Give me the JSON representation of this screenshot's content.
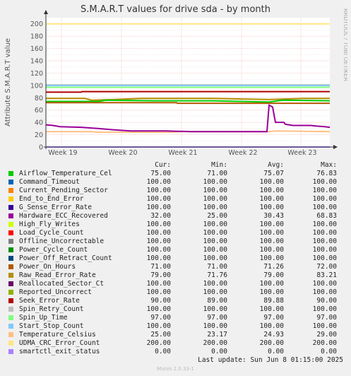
{
  "chart_data": {
    "type": "line",
    "title": "S.M.A.R.T values for drive sda - by month",
    "ylabel": "Attribute S.M.A.R.T value",
    "side_label": "RRDTOOL / TOBI OETIKER",
    "ylim": [
      0,
      210
    ],
    "yticks": [
      0,
      20,
      40,
      60,
      80,
      100,
      120,
      140,
      160,
      180,
      200
    ],
    "xticks": [
      "Week 19",
      "Week 20",
      "Week 21",
      "Week 22",
      "Week 23"
    ],
    "grid": true,
    "legend_headers": {
      "cur": "Cur:",
      "min": "Min:",
      "avg": "Avg:",
      "max": "Max:"
    },
    "series": [
      {
        "name": "Airflow_Temperature_Cel",
        "color": "#00cc00",
        "cur": "75.00",
        "min": "71.00",
        "avg": "75.07",
        "max": "76.83"
      },
      {
        "name": "Command_Timeout",
        "color": "#0066b3",
        "cur": "100.00",
        "min": "100.00",
        "avg": "100.00",
        "max": "100.00"
      },
      {
        "name": "Current_Pending_Sector",
        "color": "#ff8000",
        "cur": "100.00",
        "min": "100.00",
        "avg": "100.00",
        "max": "100.00"
      },
      {
        "name": "End_to_End_Error",
        "color": "#ffcc00",
        "cur": "100.00",
        "min": "100.00",
        "avg": "100.00",
        "max": "100.00"
      },
      {
        "name": "G_Sense_Error_Rate",
        "color": "#330099",
        "cur": "100.00",
        "min": "100.00",
        "avg": "100.00",
        "max": "100.00"
      },
      {
        "name": "Hardware_ECC_Recovered",
        "color": "#990099",
        "cur": "32.00",
        "min": "25.00",
        "avg": "30.43",
        "max": "68.83"
      },
      {
        "name": "High_Fly_Writes",
        "color": "#ccff00",
        "cur": "100.00",
        "min": "100.00",
        "avg": "100.00",
        "max": "100.00"
      },
      {
        "name": "Load_Cycle_Count",
        "color": "#ff0000",
        "cur": "100.00",
        "min": "100.00",
        "avg": "100.00",
        "max": "100.00"
      },
      {
        "name": "Offline_Uncorrectable",
        "color": "#808080",
        "cur": "100.00",
        "min": "100.00",
        "avg": "100.00",
        "max": "100.00"
      },
      {
        "name": "Power_Cycle_Count",
        "color": "#008f00",
        "cur": "100.00",
        "min": "100.00",
        "avg": "100.00",
        "max": "100.00"
      },
      {
        "name": "Power_Off_Retract_Count",
        "color": "#00487d",
        "cur": "100.00",
        "min": "100.00",
        "avg": "100.00",
        "max": "100.00"
      },
      {
        "name": "Power_On_Hours",
        "color": "#b35a00",
        "cur": "71.00",
        "min": "71.00",
        "avg": "71.26",
        "max": "72.00"
      },
      {
        "name": "Raw_Read_Error_Rate",
        "color": "#b38f00",
        "cur": "79.00",
        "min": "71.76",
        "avg": "79.00",
        "max": "83.21"
      },
      {
        "name": "Reallocated_Sector_Ct",
        "color": "#6b006b",
        "cur": "100.00",
        "min": "100.00",
        "avg": "100.00",
        "max": "100.00"
      },
      {
        "name": "Reported_Uncorrect",
        "color": "#8fb300",
        "cur": "100.00",
        "min": "100.00",
        "avg": "100.00",
        "max": "100.00"
      },
      {
        "name": "Seek_Error_Rate",
        "color": "#b30000",
        "cur": "90.00",
        "min": "89.00",
        "avg": "89.88",
        "max": "90.00"
      },
      {
        "name": "Spin_Retry_Count",
        "color": "#bebebe",
        "cur": "100.00",
        "min": "100.00",
        "avg": "100.00",
        "max": "100.00"
      },
      {
        "name": "Spin_Up_Time",
        "color": "#80ff80",
        "cur": "97.00",
        "min": "97.00",
        "avg": "97.00",
        "max": "97.00"
      },
      {
        "name": "Start_Stop_Count",
        "color": "#80c9ff",
        "cur": "100.00",
        "min": "100.00",
        "avg": "100.00",
        "max": "100.00"
      },
      {
        "name": "Temperature_Celsius",
        "color": "#ffc080",
        "cur": "25.00",
        "min": "23.17",
        "avg": "24.93",
        "max": "29.00"
      },
      {
        "name": "UDMA_CRC_Error_Count",
        "color": "#ffe680",
        "cur": "200.00",
        "min": "200.00",
        "avg": "200.00",
        "max": "200.00"
      },
      {
        "name": "smartctl_exit_status",
        "color": "#aa80ff",
        "cur": "0.00",
        "min": "0.00",
        "avg": "0.00",
        "max": "0.00"
      }
    ]
  },
  "footer": {
    "last_update": "Last update:  Sun Jun  8 01:15:00 2025",
    "version": "Munin 2.0.33-1"
  }
}
